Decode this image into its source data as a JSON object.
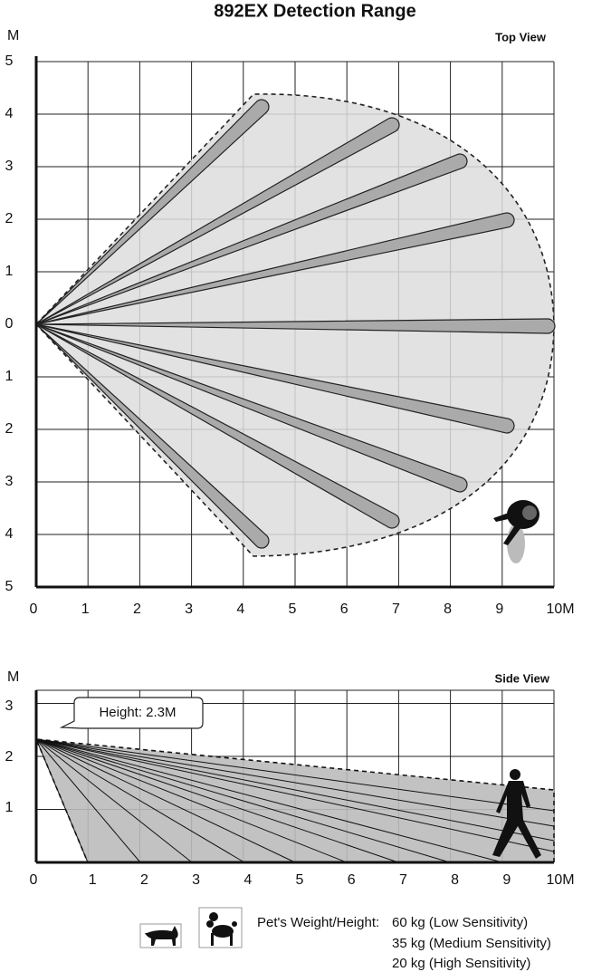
{
  "title": "892EX Detection Range",
  "top_view": {
    "label": "Top View",
    "unit": "M",
    "y_labels": [
      5,
      4,
      3,
      2,
      1,
      0,
      1,
      2,
      3,
      4,
      5
    ],
    "x_labels": [
      0,
      1,
      2,
      3,
      4,
      5,
      6,
      7,
      8,
      9,
      "10M"
    ]
  },
  "side_view": {
    "label": "Side View",
    "unit": "M",
    "y_labels": [
      3,
      2,
      1
    ],
    "x_labels": [
      0,
      1,
      2,
      3,
      4,
      5,
      6,
      7,
      8,
      9,
      "10M"
    ],
    "callout": "Height: 2.3M"
  },
  "legend": {
    "heading": "Pet's Weight/Height:",
    "lines": [
      "60 kg (Low Sensitivity)",
      "35 kg (Medium Sensitivity)",
      "20 kg (High Sensitivity)"
    ]
  }
}
